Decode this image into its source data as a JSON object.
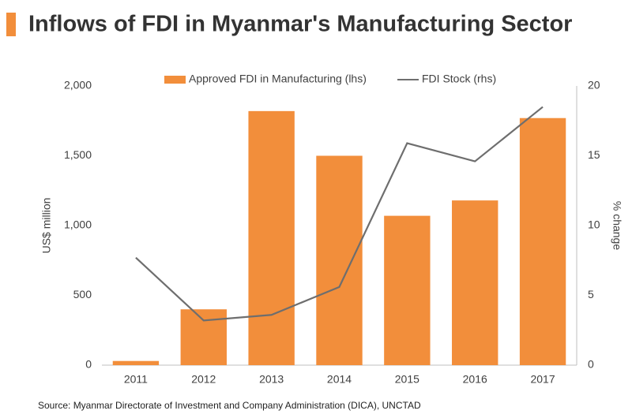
{
  "chart_data": {
    "type": "bar-line",
    "title": "Inflows of FDI in Myanmar's Manufacturing Sector",
    "y_label": "US$ million",
    "y2_label": "% change",
    "source": "Source: Myanmar Directorate of Investment and Company Administration (DICA), UNCTAD",
    "categories": [
      "2011",
      "2012",
      "2013",
      "2014",
      "2015",
      "2016",
      "2017"
    ],
    "series": [
      {
        "name": "Approved FDI in Manufacturing (lhs)",
        "type": "bar",
        "color": "#f28e3b",
        "values": [
          30,
          400,
          1820,
          1500,
          1070,
          1180,
          1770
        ]
      },
      {
        "name": "FDI Stock (rhs)",
        "type": "line",
        "axis": "y2",
        "color": "#6e6e6e",
        "values": [
          7.7,
          3.2,
          3.6,
          5.6,
          15.9,
          14.6,
          18.5
        ]
      }
    ],
    "ylim": [
      0,
      2000
    ],
    "yticks": [
      0,
      500,
      {
        "value": 1000,
        "label": "1,000"
      },
      {
        "value": 1500,
        "label": "1,500"
      },
      {
        "value": 2000,
        "label": "2,000"
      }
    ],
    "y2lim": [
      0,
      20
    ],
    "y2ticks": [
      0,
      5,
      10,
      15,
      20
    ]
  }
}
